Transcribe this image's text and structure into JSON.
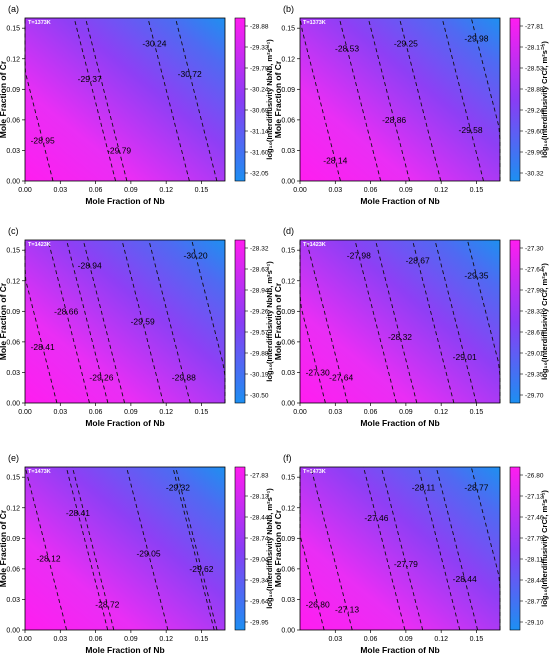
{
  "chart_data": [
    {
      "panel": "(a)",
      "type": "heatmap",
      "temperature": "T=1373K",
      "xlabel": "Mole Fraction of Nb",
      "ylabel": "Mole Fraction of  Cr",
      "xlim": [
        0,
        0.17
      ],
      "ylim": [
        0,
        0.16
      ],
      "xticks": [
        "0.00",
        "0.03",
        "0.06",
        "0.09",
        "0.12",
        "0.15"
      ],
      "yticks": [
        "0.00",
        "0.03",
        "0.06",
        "0.09",
        "0.12",
        "0.15"
      ],
      "colorbar_label": "log₁₀(Interdiffusivity NbNb, m²s⁻¹)",
      "colorbar_ticks": [
        "-28.88",
        "-29.33",
        "-29.79",
        "-30.24",
        "-30.69",
        "-31.14",
        "-31.60",
        "-32.05"
      ],
      "colorbar_range": [
        -32.05,
        -28.88
      ],
      "contours": [
        {
          "label": "-28.95",
          "x": 0.015,
          "y": 0.04
        },
        {
          "label": "-29.37",
          "x": 0.055,
          "y": 0.1
        },
        {
          "label": "-29.79",
          "x": 0.08,
          "y": 0.03
        },
        {
          "label": "-30.24",
          "x": 0.11,
          "y": 0.135
        },
        {
          "label": "-30.72",
          "x": 0.14,
          "y": 0.105
        }
      ]
    },
    {
      "panel": "(b)",
      "type": "heatmap",
      "temperature": "T=1373K",
      "xlabel": "Mole Fraction of Nb",
      "ylabel": "Mole Fraction of  Cr",
      "xlim": [
        0,
        0.17
      ],
      "ylim": [
        0,
        0.16
      ],
      "xticks": [
        "0.00",
        "0.03",
        "0.06",
        "0.09",
        "0.12",
        "0.15"
      ],
      "yticks": [
        "0.00",
        "0.03",
        "0.06",
        "0.09",
        "0.12",
        "0.15"
      ],
      "colorbar_label": "log₁₀(Interdiffusivity CrCr, m²s⁻¹)",
      "colorbar_ticks": [
        "-27.81",
        "-28.17",
        "-28.53",
        "-28.88",
        "-29.24",
        "-29.60",
        "-29.96",
        "-30.32"
      ],
      "colorbar_range": [
        -30.32,
        -27.81
      ],
      "contours": [
        {
          "label": "-28.14",
          "x": 0.03,
          "y": 0.02
        },
        {
          "label": "-28.53",
          "x": 0.04,
          "y": 0.13
        },
        {
          "label": "-28.86",
          "x": 0.08,
          "y": 0.06
        },
        {
          "label": "-29.25",
          "x": 0.09,
          "y": 0.135
        },
        {
          "label": "-29.58",
          "x": 0.145,
          "y": 0.05
        },
        {
          "label": "-29.98",
          "x": 0.15,
          "y": 0.14
        }
      ]
    },
    {
      "panel": "(c)",
      "type": "heatmap",
      "temperature": "T=1423K",
      "xlabel": "Mole Fraction of Nb",
      "ylabel": "Mole Fraction of  Cr",
      "xlim": [
        0,
        0.17
      ],
      "ylim": [
        0,
        0.16
      ],
      "xticks": [
        "0.00",
        "0.03",
        "0.06",
        "0.09",
        "0.12",
        "0.15"
      ],
      "yticks": [
        "0.00",
        "0.03",
        "0.06",
        "0.09",
        "0.12",
        "0.15"
      ],
      "colorbar_label": "log₁₀(Interdiffusivity NbNb, m²s⁻¹)",
      "colorbar_ticks": [
        "-28.32",
        "-28.63",
        "-28.94",
        "-29.26",
        "-29.57",
        "-29.88",
        "-30.19",
        "-30.50"
      ],
      "colorbar_range": [
        -30.5,
        -28.32
      ],
      "contours": [
        {
          "label": "-28.41",
          "x": 0.015,
          "y": 0.055
        },
        {
          "label": "-28.66",
          "x": 0.035,
          "y": 0.09
        },
        {
          "label": "-28.94",
          "x": 0.055,
          "y": 0.135
        },
        {
          "label": "-29.26",
          "x": 0.065,
          "y": 0.025
        },
        {
          "label": "-29.59",
          "x": 0.1,
          "y": 0.08
        },
        {
          "label": "-29.88",
          "x": 0.135,
          "y": 0.025
        },
        {
          "label": "-30.20",
          "x": 0.145,
          "y": 0.145
        }
      ]
    },
    {
      "panel": "(d)",
      "type": "heatmap",
      "temperature": "T=1423K",
      "xlabel": "Mole Fraction of Nb",
      "ylabel": "Mole Fraction of  Cr",
      "xlim": [
        0,
        0.17
      ],
      "ylim": [
        0,
        0.16
      ],
      "xticks": [
        "0.00",
        "0.03",
        "0.06",
        "0.09",
        "0.12",
        "0.15"
      ],
      "yticks": [
        "0.00",
        "0.03",
        "0.06",
        "0.09",
        "0.12",
        "0.15"
      ],
      "colorbar_label": "log₁₀(Interdiffusivity CrCr, m²s⁻¹)",
      "colorbar_ticks": [
        "-27.30",
        "-27.64",
        "-27.98",
        "-28.32",
        "-28.67",
        "-29.01",
        "-29.35",
        "-29.70"
      ],
      "colorbar_range": [
        -29.7,
        -27.3
      ],
      "contours": [
        {
          "label": "-27.30",
          "x": 0.015,
          "y": 0.03
        },
        {
          "label": "-27.64",
          "x": 0.035,
          "y": 0.025
        },
        {
          "label": "-27.98",
          "x": 0.05,
          "y": 0.145
        },
        {
          "label": "-28.32",
          "x": 0.085,
          "y": 0.065
        },
        {
          "label": "-28.67",
          "x": 0.1,
          "y": 0.14
        },
        {
          "label": "-29.01",
          "x": 0.14,
          "y": 0.045
        },
        {
          "label": "-29.35",
          "x": 0.15,
          "y": 0.125
        }
      ]
    },
    {
      "panel": "(e)",
      "type": "heatmap",
      "temperature": "T=1473K",
      "xlabel": "Mole Fraction of Nb",
      "ylabel": "Mole Fraction of  Cr",
      "xlim": [
        0,
        0.17
      ],
      "ylim": [
        0,
        0.16
      ],
      "xticks": [
        "0.00",
        "0.03",
        "0.06",
        "0.09",
        "0.12",
        "0.15"
      ],
      "yticks": [
        "0.00",
        "0.03",
        "0.06",
        "0.09",
        "0.12",
        "0.15"
      ],
      "colorbar_label": "log₁₀(Interdiffusivity NbNb, m²s⁻¹)",
      "colorbar_ticks": [
        "-27.83",
        "-28.13",
        "-28.44",
        "-28.74",
        "-29.04",
        "-29.34",
        "-29.64",
        "-29.95"
      ],
      "colorbar_range": [
        -29.95,
        -27.83
      ],
      "contours": [
        {
          "label": "-28.12",
          "x": 0.02,
          "y": 0.07
        },
        {
          "label": "-28.41",
          "x": 0.045,
          "y": 0.115
        },
        {
          "label": "-28.72",
          "x": 0.07,
          "y": 0.025
        },
        {
          "label": "-29.05",
          "x": 0.105,
          "y": 0.075
        },
        {
          "label": "-29.32",
          "x": 0.13,
          "y": 0.14
        },
        {
          "label": "-29.62",
          "x": 0.15,
          "y": 0.06
        }
      ]
    },
    {
      "panel": "(f)",
      "type": "heatmap",
      "temperature": "T=1473K",
      "xlabel": "Mole Fraction of Nb",
      "ylabel": "Mole Fraction of  Cr",
      "xlim": [
        0,
        0.17
      ],
      "ylim": [
        0,
        0.16
      ],
      "xticks": [
        "0.03",
        "0.06",
        "0.09",
        "0.12",
        "0.15"
      ],
      "yticks": [
        "0.00",
        "0.03",
        "0.06",
        "0.09",
        "0.12",
        "0.15"
      ],
      "colorbar_label": "log₁₀(Interdiffusivity CrCr, m²s⁻¹)",
      "colorbar_ticks": [
        "-26.80",
        "-27.13",
        "-27.46",
        "-27.79",
        "-28.11",
        "-28.44",
        "-28.77",
        "-29.10"
      ],
      "colorbar_range": [
        -29.1,
        -26.8
      ],
      "contours": [
        {
          "label": "-26.80",
          "x": 0.015,
          "y": 0.025
        },
        {
          "label": "-27.13",
          "x": 0.04,
          "y": 0.02
        },
        {
          "label": "-27.46",
          "x": 0.065,
          "y": 0.11
        },
        {
          "label": "-27.79",
          "x": 0.09,
          "y": 0.065
        },
        {
          "label": "-28.11",
          "x": 0.105,
          "y": 0.14
        },
        {
          "label": "-28.44",
          "x": 0.14,
          "y": 0.05
        },
        {
          "label": "-28.77",
          "x": 0.15,
          "y": 0.14
        }
      ]
    }
  ]
}
